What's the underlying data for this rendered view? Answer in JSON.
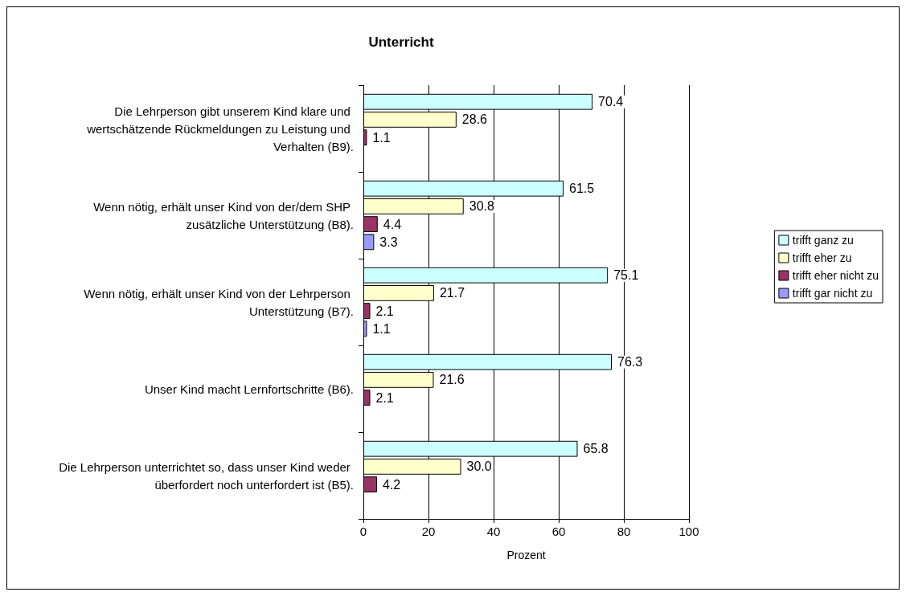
{
  "chart_data": {
    "type": "bar",
    "orientation": "horizontal",
    "title": "Unterricht",
    "xlabel": "Prozent",
    "categories": [
      "Die Lehrperson gibt unserem Kind klare und wertschätzende Rückmeldungen zu Leistung und Verhalten (B9).",
      "Wenn nötig, erhält unser Kind von der/dem SHP zusätzliche Unterstützung (B8).",
      "Wenn nötig, erhält unser Kind von der Lehrperson Unterstützung (B7).",
      "Unser Kind macht Lernfortschritte (B6).",
      "Die Lehrperson unterrichtet so, dass unser Kind weder überfordert noch unterfordert ist (B5)."
    ],
    "series": [
      {
        "name": "trifft ganz zu",
        "color": "#ccffff",
        "values": [
          70.4,
          61.5,
          75.1,
          76.3,
          65.8
        ],
        "value_labels": [
          "70.4",
          "61.5",
          "75.1",
          "76.3",
          "65.8"
        ]
      },
      {
        "name": "trifft eher zu",
        "color": "#ffffcc",
        "values": [
          28.6,
          30.8,
          21.7,
          21.6,
          30.0
        ],
        "value_labels": [
          "28.6",
          "30.8",
          "21.7",
          "21.6",
          "30.0"
        ]
      },
      {
        "name": "trifft eher nicht zu",
        "color": "#993366",
        "values": [
          1.1,
          4.4,
          2.1,
          2.1,
          4.2
        ],
        "value_labels": [
          "1.1",
          "4.4",
          "2.1",
          "2.1",
          "4.2"
        ]
      },
      {
        "name": "trifft gar nicht zu",
        "color": "#9999ff",
        "values": [
          null,
          3.3,
          1.1,
          null,
          null
        ],
        "value_labels": [
          null,
          "3.3",
          "1.1",
          null,
          null
        ]
      }
    ],
    "xlim": [
      0,
      100
    ],
    "xticks": [
      0,
      20,
      40,
      60,
      80,
      100
    ],
    "grid": "x",
    "legend": "right"
  }
}
